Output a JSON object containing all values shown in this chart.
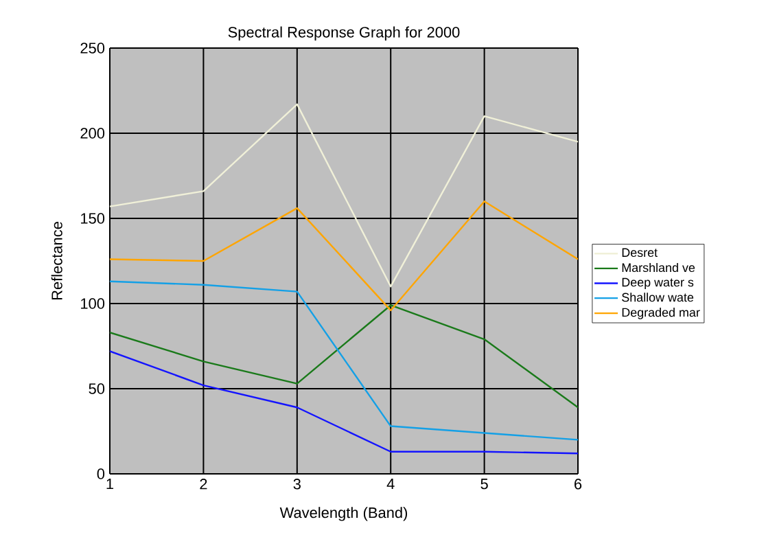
{
  "chart_data": {
    "type": "line",
    "title": "Spectral Response Graph for 2000",
    "xlabel": "Wavelength (Band)",
    "ylabel": "Reflectance",
    "x": [
      1,
      2,
      3,
      4,
      5,
      6
    ],
    "xlim": [
      1,
      6
    ],
    "xticks": [
      1,
      2,
      3,
      4,
      5,
      6
    ],
    "ylim": [
      0,
      250
    ],
    "yticks": [
      0,
      50,
      100,
      150,
      200,
      250
    ],
    "grid": true,
    "legend": "right",
    "series": [
      {
        "name": "Desret",
        "color": "#f0f0d8",
        "values": [
          157,
          166,
          217,
          110,
          210,
          195
        ]
      },
      {
        "name": "Marshland ve",
        "color": "#1a7a1a",
        "values": [
          83,
          66,
          53,
          99,
          79,
          39
        ]
      },
      {
        "name": "Deep water s",
        "color": "#1414ff",
        "values": [
          72,
          52,
          39,
          13,
          13,
          12
        ]
      },
      {
        "name": "Shallow wate",
        "color": "#14a0e6",
        "values": [
          113,
          111,
          107,
          28,
          24,
          20
        ]
      },
      {
        "name": "Degraded mar",
        "color": "#ffa500",
        "values": [
          126,
          125,
          156,
          96,
          160,
          126
        ]
      }
    ]
  }
}
